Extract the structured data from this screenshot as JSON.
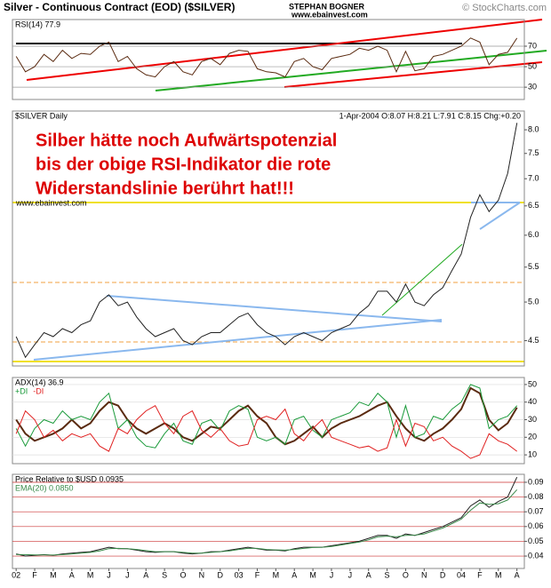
{
  "header": {
    "title": "Silver - Continuous Contract (EOD) ($SILVER)",
    "author": "STEPHAN BOGNER",
    "site": "www.ebainvest.com",
    "credit": "© StockCharts.com"
  },
  "chart_data": [
    {
      "type": "line",
      "xlim": [
        -0.2,
        27.4
      ],
      "ylim": [
        18,
        96
      ],
      "yticks": [
        70,
        50,
        30
      ],
      "grid": true,
      "grid_color": "#999999",
      "x": [
        0,
        0.5,
        1,
        1.5,
        2,
        2.5,
        3,
        3.5,
        4,
        4.5,
        5,
        5.5,
        6,
        6.5,
        7,
        7.5,
        8,
        8.5,
        9,
        9.5,
        10,
        10.5,
        11,
        11.5,
        12,
        12.5,
        13,
        13.5,
        14,
        14.5,
        15,
        15.5,
        16,
        16.5,
        17,
        17.5,
        18,
        18.5,
        19,
        19.5,
        20,
        20.5,
        21,
        21.5,
        22,
        22.5,
        23,
        23.5,
        24,
        24.5,
        25,
        25.5,
        26,
        26.5,
        27
      ],
      "series": [
        {
          "name": "RSI(14) 77.9",
          "color": "#5a2a10",
          "values": [
            60,
            45,
            50,
            62,
            55,
            66,
            58,
            63,
            62,
            70,
            74,
            55,
            60,
            48,
            42,
            40,
            50,
            55,
            45,
            42,
            55,
            58,
            52,
            63,
            66,
            65,
            48,
            45,
            44,
            40,
            55,
            58,
            50,
            47,
            58,
            60,
            62,
            68,
            66,
            70,
            66,
            45,
            65,
            46,
            48,
            60,
            62,
            66,
            70,
            78,
            74,
            52,
            62,
            64,
            77.9
          ]
        }
      ]
    },
    {
      "type": "line",
      "subtitle": "1-Apr-2004 O:8.07 H:8.21 L:7.91 C:8.15 Chg:+0.20",
      "log_scale": true,
      "xlim": [
        -0.2,
        27.4
      ],
      "ylim": [
        4.2,
        8.42
      ],
      "yticks": [
        {
          "value": 8,
          "label": "8.0"
        },
        7.5,
        {
          "value": 7,
          "label": "7.0"
        },
        6.5,
        {
          "value": 6,
          "label": "6.0"
        },
        5.5,
        {
          "value": 5,
          "label": "5.0"
        },
        4.5
      ],
      "grid": false,
      "annotations": [
        "Silber hätte noch Aufwärtspotenzial",
        "bis der obige RSI-Indikator die rote",
        "Widerstandslinie berührt hat!!!"
      ],
      "annotation_color": "#dd0000",
      "watermark": "www.ebainvest.com",
      "x": [
        0,
        0.5,
        1,
        1.5,
        2,
        2.5,
        3,
        3.5,
        4,
        4.5,
        5,
        5.5,
        6,
        6.5,
        7,
        7.5,
        8,
        8.5,
        9,
        9.5,
        10,
        10.5,
        11,
        11.5,
        12,
        12.5,
        13,
        13.5,
        14,
        14.5,
        15,
        15.5,
        16,
        16.5,
        17,
        17.5,
        18,
        18.5,
        19,
        19.5,
        20,
        20.5,
        21,
        21.5,
        22,
        22.5,
        23,
        23.5,
        24,
        24.5,
        25,
        25.5,
        26,
        26.5,
        27
      ],
      "series": [
        {
          "name": "$SILVER Daily",
          "color": "#222222",
          "values": [
            4.55,
            4.3,
            4.45,
            4.6,
            4.55,
            4.65,
            4.6,
            4.7,
            4.75,
            5.0,
            5.1,
            4.95,
            5.0,
            4.8,
            4.65,
            4.55,
            4.6,
            4.65,
            4.5,
            4.45,
            4.55,
            4.6,
            4.6,
            4.7,
            4.8,
            4.85,
            4.7,
            4.6,
            4.55,
            4.45,
            4.55,
            4.6,
            4.55,
            4.5,
            4.6,
            4.65,
            4.7,
            4.85,
            4.95,
            5.15,
            5.15,
            5.0,
            5.25,
            5.0,
            4.95,
            5.1,
            5.2,
            5.45,
            5.7,
            6.3,
            6.7,
            6.4,
            6.6,
            7.1,
            8.15
          ]
        }
      ]
    },
    {
      "type": "line",
      "xlim": [
        -0.2,
        27.4
      ],
      "ylim": [
        5,
        54
      ],
      "yticks": [
        50,
        40,
        30,
        20,
        10
      ],
      "grid": true,
      "grid_color": "#dddddd",
      "x": [
        0,
        0.5,
        1,
        1.5,
        2,
        2.5,
        3,
        3.5,
        4,
        4.5,
        5,
        5.5,
        6,
        6.5,
        7,
        7.5,
        8,
        8.5,
        9,
        9.5,
        10,
        10.5,
        11,
        11.5,
        12,
        12.5,
        13,
        13.5,
        14,
        14.5,
        15,
        15.5,
        16,
        16.5,
        17,
        17.5,
        18,
        18.5,
        19,
        19.5,
        20,
        20.5,
        21,
        21.5,
        22,
        22.5,
        23,
        23.5,
        24,
        24.5,
        25,
        25.5,
        26,
        26.5,
        27
      ],
      "series": [
        {
          "name": "ADX(14) 36.9",
          "color": "#5a2a10",
          "values": [
            30,
            22,
            18,
            20,
            22,
            25,
            30,
            25,
            28,
            35,
            40,
            38,
            30,
            25,
            22,
            25,
            28,
            25,
            20,
            18,
            22,
            26,
            25,
            30,
            35,
            38,
            32,
            28,
            20,
            16,
            18,
            22,
            26,
            20,
            25,
            28,
            30,
            32,
            35,
            38,
            40,
            32,
            25,
            20,
            18,
            22,
            25,
            30,
            36,
            48,
            45,
            30,
            24,
            28,
            36.9
          ]
        },
        {
          "name": "+DI",
          "color": "#1a9a3a",
          "values": [
            25,
            15,
            25,
            30,
            28,
            35,
            30,
            32,
            30,
            40,
            45,
            25,
            30,
            20,
            15,
            14,
            22,
            28,
            18,
            16,
            28,
            30,
            24,
            35,
            38,
            36,
            20,
            18,
            20,
            16,
            30,
            32,
            24,
            20,
            30,
            32,
            34,
            40,
            38,
            45,
            40,
            20,
            38,
            20,
            22,
            32,
            30,
            36,
            40,
            50,
            48,
            25,
            30,
            32,
            38
          ]
        },
        {
          "name": "-DI",
          "color": "#e02020",
          "values": [
            22,
            35,
            30,
            20,
            24,
            18,
            22,
            20,
            22,
            15,
            12,
            25,
            22,
            30,
            35,
            38,
            28,
            22,
            32,
            35,
            24,
            20,
            25,
            18,
            15,
            16,
            30,
            32,
            30,
            36,
            22,
            18,
            25,
            30,
            20,
            18,
            16,
            14,
            15,
            12,
            14,
            30,
            15,
            28,
            26,
            18,
            20,
            15,
            12,
            8,
            10,
            22,
            18,
            16,
            12
          ]
        }
      ]
    },
    {
      "type": "line",
      "xlim": [
        -0.2,
        27.4
      ],
      "ylim": [
        0.0316,
        0.0954
      ],
      "yticks": [
        0.09,
        0.08,
        0.07,
        0.06,
        0.05,
        0.04
      ],
      "grid": true,
      "grid_color": "#cc3333",
      "xticks": [
        {
          "value": 0,
          "label": "02"
        },
        {
          "value": 1,
          "label": "F"
        },
        {
          "value": 2,
          "label": "M"
        },
        {
          "value": 3,
          "label": "A"
        },
        {
          "value": 4,
          "label": "M"
        },
        {
          "value": 5,
          "label": "J"
        },
        {
          "value": 6,
          "label": "J"
        },
        {
          "value": 7,
          "label": "A"
        },
        {
          "value": 8,
          "label": "S"
        },
        {
          "value": 9,
          "label": "O"
        },
        {
          "value": 10,
          "label": "N"
        },
        {
          "value": 11,
          "label": "D"
        },
        {
          "value": 12,
          "label": "03"
        },
        {
          "value": 13,
          "label": "F"
        },
        {
          "value": 14,
          "label": "M"
        },
        {
          "value": 15,
          "label": "A"
        },
        {
          "value": 16,
          "label": "M"
        },
        {
          "value": 17,
          "label": "J"
        },
        {
          "value": 18,
          "label": "J"
        },
        {
          "value": 19,
          "label": "A"
        },
        {
          "value": 20,
          "label": "S"
        },
        {
          "value": 21,
          "label": "O"
        },
        {
          "value": 22,
          "label": "N"
        },
        {
          "value": 23,
          "label": "D"
        },
        {
          "value": 24,
          "label": "04"
        },
        {
          "value": 25,
          "label": "F"
        },
        {
          "value": 26,
          "label": "M"
        },
        {
          "value": 27,
          "label": "A"
        }
      ],
      "x": [
        0,
        0.5,
        1,
        1.5,
        2,
        2.5,
        3,
        3.5,
        4,
        4.5,
        5,
        5.5,
        6,
        6.5,
        7,
        7.5,
        8,
        8.5,
        9,
        9.5,
        10,
        10.5,
        11,
        11.5,
        12,
        12.5,
        13,
        13.5,
        14,
        14.5,
        15,
        15.5,
        16,
        16.5,
        17,
        17.5,
        18,
        18.5,
        19,
        19.5,
        20,
        20.5,
        21,
        21.5,
        22,
        22.5,
        23,
        23.5,
        24,
        24.5,
        25,
        25.5,
        26,
        26.5,
        27
      ],
      "series": [
        {
          "name": "Price Relative to $USD 0.0935",
          "color": "#222222",
          "values": [
            0.0415,
            0.04,
            0.0405,
            0.041,
            0.0405,
            0.0415,
            0.042,
            0.0425,
            0.043,
            0.0445,
            0.046,
            0.045,
            0.045,
            0.044,
            0.043,
            0.0425,
            0.043,
            0.043,
            0.042,
            0.0415,
            0.042,
            0.043,
            0.043,
            0.044,
            0.045,
            0.046,
            0.045,
            0.044,
            0.044,
            0.0435,
            0.045,
            0.046,
            0.046,
            0.046,
            0.047,
            0.048,
            0.049,
            0.05,
            0.052,
            0.054,
            0.054,
            0.052,
            0.055,
            0.054,
            0.056,
            0.058,
            0.06,
            0.063,
            0.066,
            0.074,
            0.078,
            0.073,
            0.077,
            0.08,
            0.0935
          ]
        },
        {
          "name": "EMA(20) 0.0850",
          "color": "#3a8a4a",
          "values": [
            0.041,
            0.041,
            0.0408,
            0.0408,
            0.0407,
            0.041,
            0.0415,
            0.042,
            0.0425,
            0.0435,
            0.045,
            0.0452,
            0.045,
            0.0445,
            0.0437,
            0.043,
            0.043,
            0.043,
            0.0425,
            0.042,
            0.042,
            0.0425,
            0.043,
            0.0435,
            0.0445,
            0.0452,
            0.0452,
            0.0445,
            0.0442,
            0.044,
            0.0445,
            0.0452,
            0.0458,
            0.046,
            0.0465,
            0.0475,
            0.0485,
            0.0495,
            0.051,
            0.053,
            0.0535,
            0.053,
            0.054,
            0.0542,
            0.055,
            0.057,
            0.059,
            0.062,
            0.065,
            0.071,
            0.076,
            0.075,
            0.0755,
            0.078,
            0.085
          ]
        }
      ]
    }
  ]
}
